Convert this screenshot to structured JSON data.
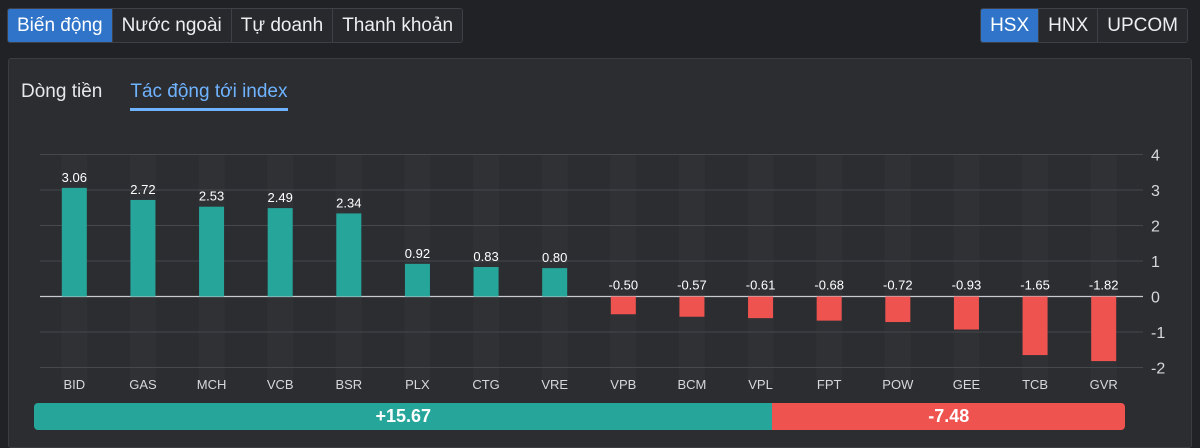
{
  "tabs": [
    {
      "label": "Biến động",
      "active": true
    },
    {
      "label": "Nước ngoài",
      "active": false
    },
    {
      "label": "Tự doanh",
      "active": false
    },
    {
      "label": "Thanh khoản",
      "active": false
    }
  ],
  "exchanges": [
    {
      "label": "HSX",
      "active": true
    },
    {
      "label": "HNX",
      "active": false
    },
    {
      "label": "UPCOM",
      "active": false
    }
  ],
  "subtabs": [
    {
      "label": "Dòng tiền",
      "active": false
    },
    {
      "label": "Tác động tới index",
      "active": true
    }
  ],
  "colors": {
    "positive": "#26a69a",
    "negative": "#ef5350",
    "accent": "#2f74c8"
  },
  "chart_data": {
    "type": "bar",
    "categories": [
      "BID",
      "GAS",
      "MCH",
      "VCB",
      "BSR",
      "PLX",
      "CTG",
      "VRE",
      "VPB",
      "BCM",
      "VPL",
      "FPT",
      "POW",
      "GEE",
      "TCB",
      "GVR"
    ],
    "values": [
      3.06,
      2.72,
      2.53,
      2.49,
      2.34,
      0.92,
      0.83,
      0.8,
      -0.5,
      -0.57,
      -0.61,
      -0.68,
      -0.72,
      -0.93,
      -1.65,
      -1.82
    ],
    "value_labels": [
      "3.06",
      "2.72",
      "2.53",
      "2.49",
      "2.34",
      "0.92",
      "0.83",
      "0.80",
      "-0.50",
      "-0.57",
      "-0.61",
      "-0.68",
      "-0.72",
      "-0.93",
      "-1.65",
      "-1.82"
    ],
    "yticks": [
      4,
      3,
      2,
      1,
      0,
      -1,
      -2
    ],
    "ylim": [
      -2,
      4
    ],
    "grid": true,
    "y_axis_side": "right",
    "title": "",
    "xlabel": "",
    "ylabel": ""
  },
  "summary": {
    "positive": "+15.67",
    "negative": "-7.48"
  }
}
